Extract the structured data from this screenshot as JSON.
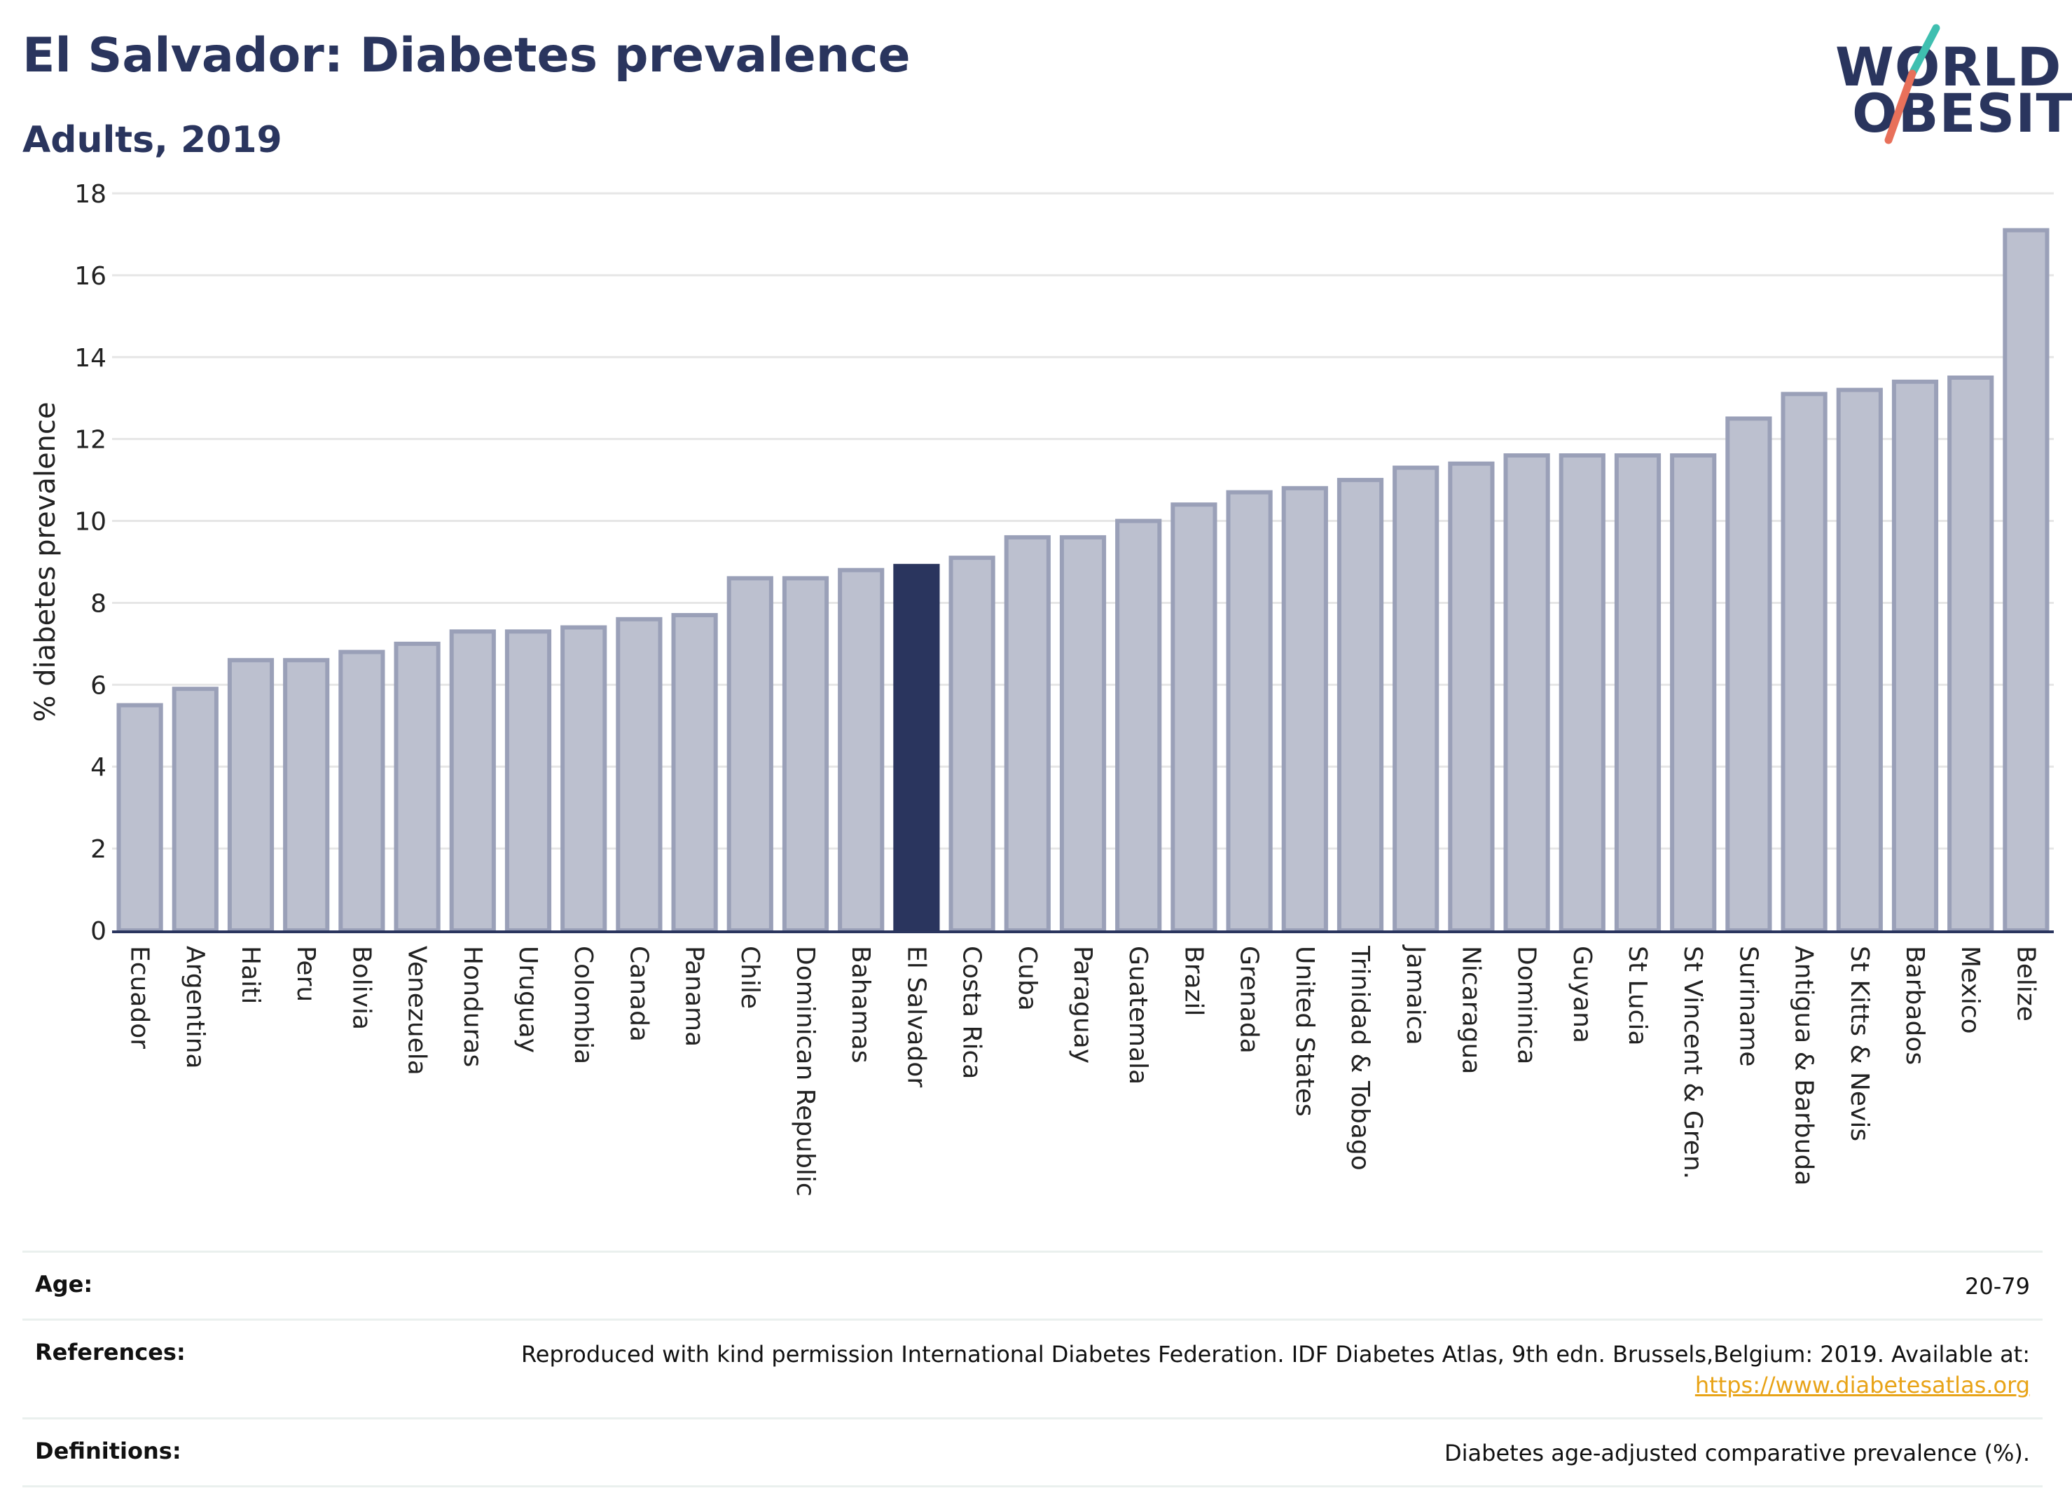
{
  "header": {
    "title": "El Salvador: Diabetes prevalence",
    "subtitle": "Adults, 2019"
  },
  "logo": {
    "line1": "WORLD",
    "line2": "OBESITY",
    "accent_teal": "#3fbfb0",
    "accent_coral": "#e8705a"
  },
  "colors": {
    "bar_default": "#bcc0cf",
    "bar_stroke": "#9aa0b8",
    "bar_highlight": "#2a355e",
    "axis_line": "#2a355e",
    "grid": "#e6e6e6"
  },
  "chart_data": {
    "type": "bar",
    "title": "El Salvador: Diabetes prevalence",
    "subtitle": "Adults, 2019",
    "ylabel": "% diabetes prevalence",
    "xlabel": "",
    "ylim": [
      0,
      18
    ],
    "yticks": [
      0,
      2,
      4,
      6,
      8,
      10,
      12,
      14,
      16,
      18
    ],
    "grid": true,
    "highlight": "El Salvador",
    "categories": [
      "Ecuador",
      "Argentina",
      "Haiti",
      "Peru",
      "Bolivia",
      "Venezuela",
      "Honduras",
      "Uruguay",
      "Colombia",
      "Canada",
      "Panama",
      "Chile",
      "Dominican Republic",
      "Bahamas",
      "El Salvador",
      "Costa Rica",
      "Cuba",
      "Paraguay",
      "Guatemala",
      "Brazil",
      "Grenada",
      "United States",
      "Trinidad & Tobago",
      "Jamaica",
      "Nicaragua",
      "Dominica",
      "Guyana",
      "St Lucia",
      "St Vincent & Gren.",
      "Suriname",
      "Antigua & Barbuda",
      "St Kitts & Nevis",
      "Barbados",
      "Mexico",
      "Belize"
    ],
    "values": [
      5.5,
      5.9,
      6.6,
      6.6,
      6.8,
      7.0,
      7.3,
      7.3,
      7.4,
      7.6,
      7.7,
      8.6,
      8.6,
      8.8,
      8.9,
      9.1,
      9.6,
      9.6,
      10.0,
      10.4,
      10.7,
      10.8,
      11.0,
      11.3,
      11.4,
      11.6,
      11.6,
      11.6,
      11.6,
      12.5,
      13.1,
      13.2,
      13.4,
      13.5,
      17.1
    ]
  },
  "info": {
    "age_label": "Age:",
    "age_value": "20-79",
    "references_label": "References:",
    "references_value": "Reproduced with kind permission International Diabetes Federation. IDF Diabetes Atlas, 9th edn. Brussels,Belgium: 2019. Available at:",
    "references_link": "https://www.diabetesatlas.org",
    "definitions_label": "Definitions:",
    "definitions_value": "Diabetes age-adjusted comparative prevalence (%)."
  }
}
